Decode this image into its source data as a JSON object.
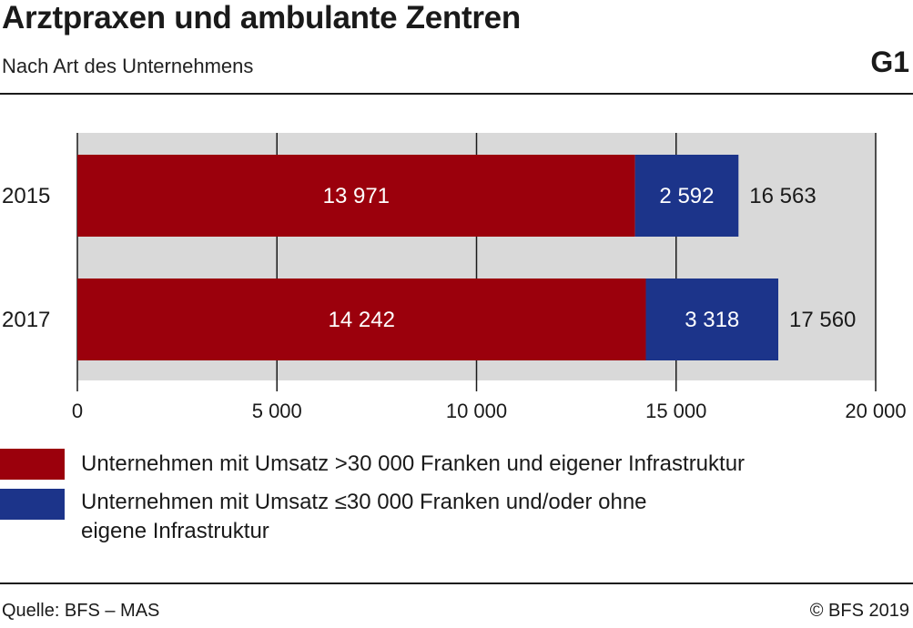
{
  "header": {
    "title": "Arztpraxen und ambulante Zentren",
    "subtitle": "Nach Art des Unternehmens",
    "figure_number": "G1"
  },
  "colors": {
    "series1": "#9b000c",
    "series2": "#1c348a",
    "plot_background": "#d9d9d9"
  },
  "chart_data": {
    "type": "bar",
    "orientation": "horizontal",
    "stacked": true,
    "categories": [
      "2015",
      "2017"
    ],
    "series": [
      {
        "name": "Unternehmen mit Umsatz >30 000 Franken und eigener Infrastruktur",
        "values": [
          13971,
          14242
        ],
        "labels": [
          "13 971",
          "14 242"
        ]
      },
      {
        "name": "Unternehmen mit Umsatz ≤30 000 Franken und/oder ohne eigene Infrastruktur",
        "values": [
          2592,
          3318
        ],
        "labels": [
          "2 592",
          "3 318"
        ]
      }
    ],
    "totals": [
      16563,
      17560
    ],
    "total_labels": [
      "16 563",
      "17 560"
    ],
    "xlim": [
      0,
      20000
    ],
    "xticks": [
      0,
      5000,
      10000,
      15000,
      20000
    ],
    "xtick_labels": [
      "0",
      "5 000",
      "10 000",
      "15 000",
      "20 000"
    ],
    "grid": true,
    "legend_position": "bottom"
  },
  "legend": [
    {
      "label_lines": [
        "Unternehmen mit Umsatz >30 000 Franken und eigener Infrastruktur"
      ]
    },
    {
      "label_lines": [
        "Unternehmen mit Umsatz ≤30 000 Franken und/oder ohne",
        "eigene Infrastruktur"
      ]
    }
  ],
  "footer": {
    "source": "Quelle: BFS – MAS",
    "copyright": "© BFS 2019"
  }
}
